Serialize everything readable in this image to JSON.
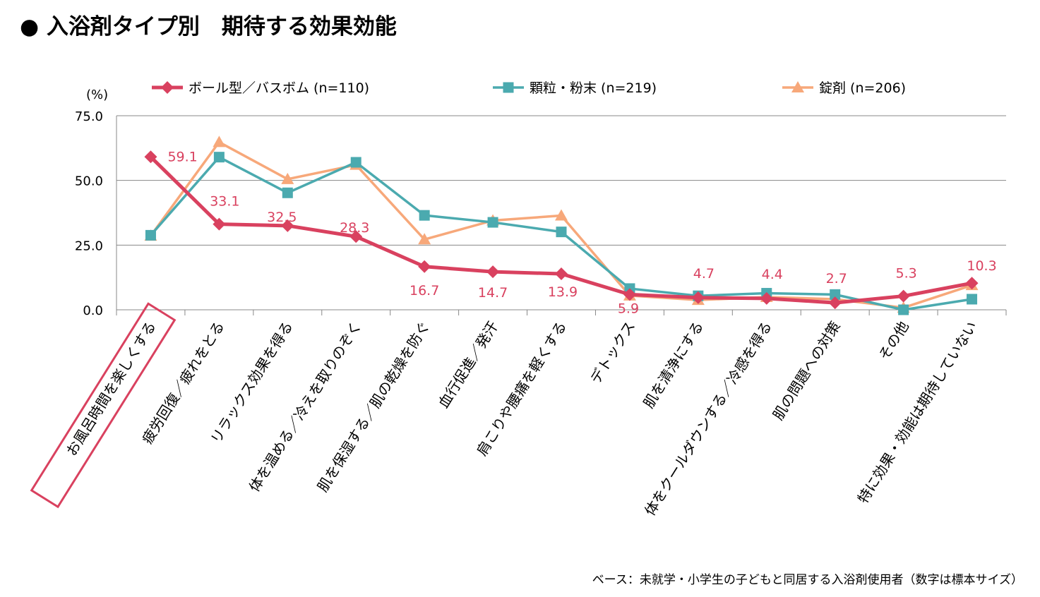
{
  "title": "● 入浴剤タイプ別　期待する効果効能",
  "footnote": "ベース：未就学・小学生の子どもと同居する入浴剤使用者（数字は標本サイズ）",
  "chart_data": {
    "type": "line",
    "unit_label": "(%)",
    "ylim": [
      0,
      75
    ],
    "yticks": [
      "0.0",
      "25.0",
      "50.0",
      "75.0"
    ],
    "grid": true,
    "legend_position": "top",
    "highlight_category": "お風呂時間を楽しくする",
    "categories": [
      "お風呂時間を楽しくする",
      "疲労回復／疲れをとる",
      "リラックス効果を得る",
      "体を温める／冷えを取りのぞく",
      "肌を保湿する／肌の乾燥を防ぐ",
      "血行促進／発汗",
      "肩こりや腰痛を軽くする",
      "デトックス",
      "肌を清浄にする",
      "体をクールダウンする／冷感を得る",
      "肌の問題への対策",
      "その他",
      "特に効果・効能は期待していない"
    ],
    "series": [
      {
        "name": "ボール型／バスボム (n=110)",
        "color": "#d9415f",
        "marker": "diamond",
        "values": [
          59.1,
          33.1,
          32.5,
          28.3,
          16.7,
          14.7,
          13.9,
          5.9,
          4.7,
          4.4,
          2.7,
          5.3,
          10.3
        ],
        "labels": [
          "59.1",
          "33.1",
          "32.5",
          "28.3",
          "16.7",
          "14.7",
          "13.9",
          "5.9",
          "4.7",
          "4.4",
          "2.7",
          "5.3",
          "10.3"
        ]
      },
      {
        "name": "顆粒・粉末 (n=219)",
        "color": "#4baaaf",
        "marker": "square",
        "values": [
          28.8,
          59.0,
          45.2,
          57.0,
          36.5,
          33.8,
          30.1,
          8.2,
          5.4,
          6.4,
          5.9,
          0.0,
          4.1
        ]
      },
      {
        "name": "錠剤 (n=206)",
        "color": "#f7a87a",
        "marker": "triangle",
        "values": [
          28.6,
          64.8,
          50.5,
          56.0,
          27.2,
          34.5,
          36.4,
          5.5,
          3.8,
          4.9,
          4.1,
          0.8,
          9.5
        ]
      }
    ]
  }
}
